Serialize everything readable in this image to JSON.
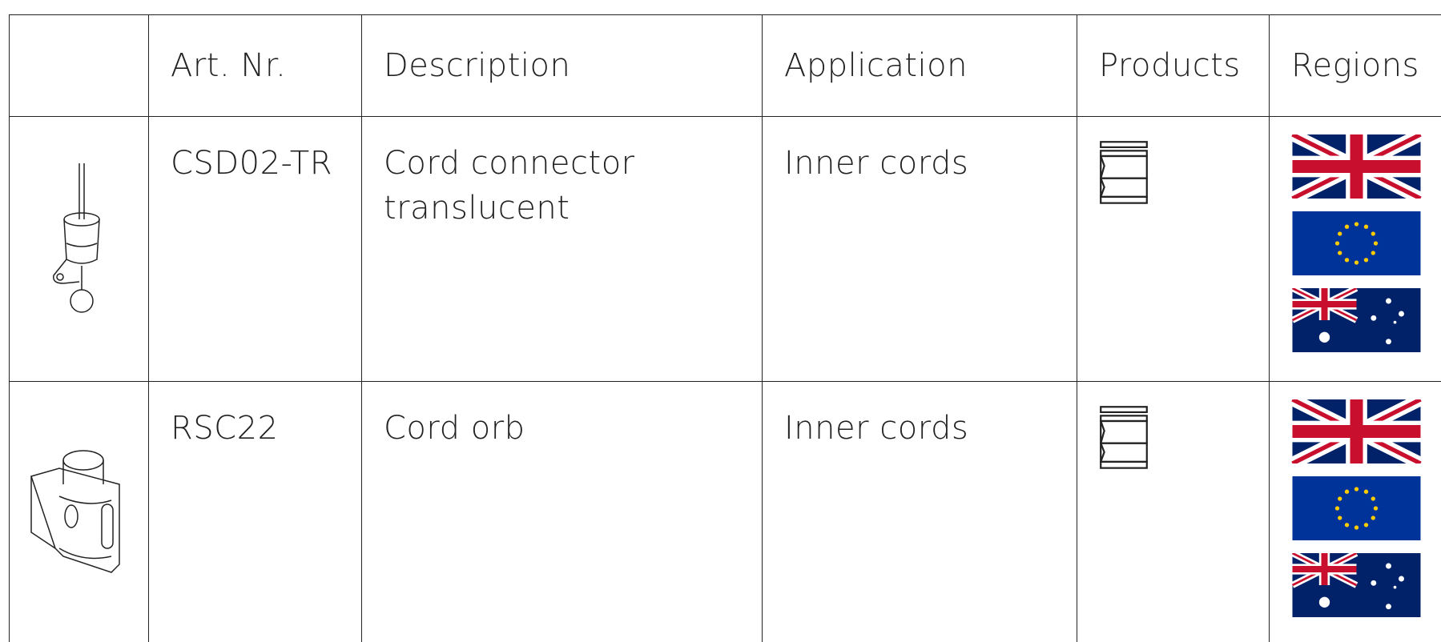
{
  "table": {
    "headers": [
      "Art. Nr.",
      "Description",
      "Application",
      "Products",
      "Regions"
    ],
    "rows": [
      {
        "art": "CSD02-TR",
        "description": "Cord connector translucent",
        "application": "Inner cords"
      },
      {
        "art": "RSC22",
        "description": "Cord orb",
        "application": "Inner cords"
      }
    ]
  }
}
